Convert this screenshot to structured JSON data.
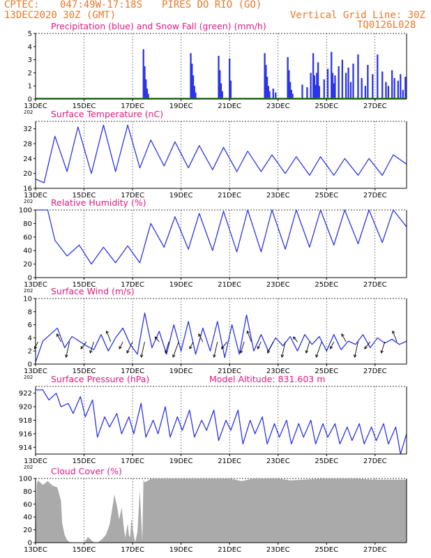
{
  "header": {
    "source": "CPTEC:",
    "coords": "047:49W-17:18S",
    "location": "PIRES DO RIO (GO)",
    "run": "13DEC2020 30Z (GMT)",
    "grid_note": "Vertical Grid Line: 30Z",
    "code": "TQ0126L028"
  },
  "colors": {
    "title": "#e0197d",
    "header": "#e8782a",
    "line": "#2b35e6",
    "snow": "#0a9a0a",
    "cloud": "#aaaaaa"
  },
  "x_axis": {
    "tick_labels": [
      "13DEC",
      "15DEC",
      "17DEC",
      "19DEC",
      "21DEC",
      "23DEC",
      "25DEC",
      "27DEC"
    ],
    "tick_days": [
      0,
      2,
      4,
      6,
      8,
      10,
      12,
      14
    ],
    "range_days": [
      0,
      15.3
    ],
    "year_fragment": "202"
  },
  "chart_data": [
    {
      "type": "bar",
      "title": "Precipitation (blue) and Snow Fall (green) (mm/h)",
      "ylim": [
        0,
        5
      ],
      "yticks": [
        "0",
        "1",
        "2",
        "3",
        "4",
        "5"
      ],
      "series": [
        {
          "name": "Precipitation",
          "x": [
            4.45,
            4.5,
            4.55,
            4.6,
            4.65,
            6.4,
            6.45,
            6.5,
            6.55,
            6.6,
            7.55,
            7.6,
            7.65,
            7.7,
            8.0,
            8.05,
            9.45,
            9.5,
            9.55,
            9.6,
            9.65,
            9.8,
            9.9,
            10.4,
            10.45,
            10.5,
            10.55,
            10.6,
            11.0,
            11.2,
            11.35,
            11.45,
            11.5,
            11.55,
            11.6,
            11.65,
            11.7,
            11.9,
            12.05,
            12.2,
            12.25,
            12.3,
            12.35,
            12.5,
            12.65,
            12.8,
            12.9,
            13.0,
            13.1,
            13.3,
            13.45,
            13.6,
            13.7,
            13.9,
            14.1,
            14.3,
            14.45,
            14.55,
            14.7,
            14.8,
            14.95,
            15.05,
            15.15,
            15.25
          ],
          "values": [
            3.8,
            2.5,
            1.5,
            0.8,
            0.4,
            3.5,
            2.7,
            1.8,
            1.0,
            0.5,
            3.3,
            2.2,
            1.2,
            0.6,
            3.1,
            1.4,
            3.5,
            2.6,
            1.7,
            1.0,
            0.6,
            0.8,
            0.5,
            3.2,
            2.2,
            1.3,
            0.7,
            0.4,
            1.1,
            0.9,
            2.0,
            3.5,
            1.8,
            1.1,
            2.0,
            2.8,
            1.0,
            1.5,
            2.3,
            3.6,
            2.0,
            1.2,
            1.8,
            2.5,
            3.0,
            2.0,
            2.4,
            1.3,
            2.7,
            3.4,
            1.6,
            1.0,
            2.6,
            1.9,
            3.4,
            2.1,
            1.3,
            1.0,
            2.2,
            1.6,
            1.4,
            1.9,
            0.7,
            1.7
          ]
        },
        {
          "name": "Snow Fall",
          "values": [
            0
          ]
        }
      ]
    },
    {
      "type": "line",
      "title": "Surface Temperature (nC)",
      "ylim": [
        16,
        34
      ],
      "yticks": [
        "16",
        "20",
        "24",
        "28",
        "32"
      ],
      "x": [
        0,
        0.35,
        0.8,
        1.3,
        1.75,
        2.3,
        2.8,
        3.3,
        3.8,
        4.3,
        4.75,
        5.3,
        5.75,
        6.3,
        6.75,
        7.3,
        7.75,
        8.3,
        8.75,
        9.3,
        9.75,
        10.3,
        10.75,
        11.3,
        11.75,
        12.3,
        12.75,
        13.3,
        13.75,
        14.3,
        14.75,
        15.3
      ],
      "values": [
        18.5,
        17.5,
        30,
        20.5,
        32.5,
        20,
        33,
        20.5,
        33,
        21.5,
        29,
        22,
        28.5,
        21.5,
        27.5,
        21,
        27,
        20.5,
        26,
        20.5,
        25,
        20,
        24.5,
        19.5,
        24.5,
        19.5,
        24,
        19.5,
        24,
        19.5,
        25,
        22.5
      ]
    },
    {
      "type": "line",
      "title": "Relative Humidity (%)",
      "ylim": [
        0,
        100
      ],
      "yticks": [
        "0",
        "20",
        "40",
        "60",
        "80",
        "100"
      ],
      "x": [
        0,
        0.5,
        0.8,
        1.3,
        1.8,
        2.3,
        2.8,
        3.3,
        3.8,
        4.3,
        4.75,
        5.3,
        5.75,
        6.3,
        6.75,
        7.3,
        7.75,
        8.3,
        8.75,
        9.3,
        9.75,
        10.3,
        10.75,
        11.3,
        11.75,
        12.3,
        12.75,
        13.3,
        13.75,
        14.3,
        14.75,
        15.3
      ],
      "values": [
        100,
        100,
        55,
        32,
        48,
        20,
        45,
        22,
        47,
        22,
        80,
        45,
        90,
        42,
        95,
        40,
        98,
        38,
        100,
        38,
        100,
        42,
        100,
        45,
        100,
        48,
        100,
        50,
        100,
        52,
        100,
        75
      ]
    },
    {
      "type": "line",
      "title": "Surface Wind (m/s)",
      "ylim": [
        0,
        10
      ],
      "yticks": [
        "0",
        "2",
        "4",
        "6",
        "8",
        "10"
      ],
      "x": [
        0,
        0.3,
        0.6,
        0.9,
        1.2,
        1.5,
        1.8,
        2.1,
        2.4,
        2.7,
        3.0,
        3.3,
        3.6,
        3.9,
        4.2,
        4.5,
        4.8,
        5.1,
        5.4,
        5.7,
        6.0,
        6.3,
        6.6,
        6.9,
        7.2,
        7.5,
        7.8,
        8.1,
        8.4,
        8.7,
        9.0,
        9.3,
        9.6,
        9.9,
        10.2,
        10.5,
        10.8,
        11.1,
        11.4,
        11.7,
        12.0,
        12.3,
        12.6,
        12.9,
        13.2,
        13.5,
        13.8,
        14.1,
        14.4,
        14.7,
        15.0,
        15.3
      ],
      "values": [
        0.3,
        3.5,
        4.5,
        5.5,
        2.5,
        4.2,
        3.5,
        2.8,
        2.2,
        4.5,
        2.0,
        4.0,
        5.5,
        3.0,
        1.5,
        7.8,
        2.5,
        5.0,
        1.5,
        6.0,
        2.0,
        6.5,
        1.5,
        5.5,
        2.0,
        6.5,
        1.0,
        6.0,
        1.5,
        7.5,
        2.0,
        4.5,
        2.0,
        4.0,
        2.8,
        4.2,
        2.0,
        4.5,
        3.0,
        4.2,
        2.0,
        4.5,
        2.2,
        3.5,
        3.0,
        4.5,
        2.5,
        4.0,
        3.2,
        3.8,
        3.0,
        3.5
      ]
    },
    {
      "type": "line",
      "title": "Surface Pressure (hPa)",
      "annotation": "Model Altitude: 831.603 m",
      "ylim": [
        913,
        923
      ],
      "yticks": [
        "914",
        "916",
        "918",
        "920",
        "922"
      ],
      "x": [
        0,
        0.3,
        0.55,
        0.85,
        1.05,
        1.35,
        1.55,
        1.85,
        2.05,
        2.35,
        2.55,
        2.85,
        3.05,
        3.35,
        3.55,
        3.85,
        4.05,
        4.35,
        4.55,
        4.85,
        5.05,
        5.35,
        5.55,
        5.85,
        6.05,
        6.35,
        6.55,
        6.85,
        7.05,
        7.35,
        7.55,
        7.85,
        8.05,
        8.35,
        8.55,
        8.85,
        9.05,
        9.35,
        9.55,
        9.85,
        10.05,
        10.35,
        10.55,
        10.85,
        11.05,
        11.35,
        11.55,
        11.85,
        12.05,
        12.35,
        12.55,
        12.85,
        13.05,
        13.35,
        13.55,
        13.85,
        14.05,
        14.35,
        14.55,
        14.85,
        15.05,
        15.3
      ],
      "values": [
        922.5,
        922.5,
        921,
        922,
        920,
        920.5,
        919,
        921.5,
        918.5,
        921,
        915.5,
        918.5,
        917,
        919,
        916,
        918.5,
        916,
        920.5,
        915.5,
        918,
        916,
        920,
        915.5,
        918.5,
        916.5,
        919.5,
        915.5,
        918,
        916.5,
        919.5,
        915,
        918,
        916.5,
        919.5,
        914.5,
        918,
        916,
        918.5,
        914.5,
        917.5,
        915.5,
        918,
        914.5,
        917.5,
        915.5,
        918,
        914.5,
        917.5,
        915.5,
        917.5,
        914.5,
        917,
        915,
        917.5,
        914.5,
        917,
        915,
        917.5,
        914.5,
        917,
        913,
        916
      ]
    },
    {
      "type": "area",
      "title": "Cloud Cover (%)",
      "ylim": [
        0,
        100
      ],
      "yticks": [
        "0",
        "20",
        "40",
        "60",
        "80",
        "100"
      ],
      "x": [
        0,
        0.05,
        0.1,
        0.3,
        0.5,
        0.7,
        0.9,
        1.05,
        1.1,
        1.2,
        1.3,
        1.4,
        1.6,
        1.8,
        2.0,
        2.1,
        2.15,
        2.25,
        2.35,
        2.45,
        2.55,
        2.7,
        2.9,
        3.05,
        3.15,
        3.25,
        3.35,
        3.45,
        3.55,
        3.65,
        3.7,
        3.8,
        3.85,
        3.9,
        3.95,
        4.0,
        4.1,
        4.2,
        4.3,
        4.4,
        4.45,
        4.5,
        4.6,
        4.8,
        5.0,
        5.5,
        6.0,
        6.5,
        7.0,
        7.5,
        8.0,
        8.5,
        9.0,
        9.5,
        10.0,
        10.5,
        11.0,
        12.0,
        13.0,
        14.0,
        15.0,
        15.3
      ],
      "values": [
        0,
        92,
        97,
        90,
        96,
        89,
        86,
        65,
        30,
        12,
        4,
        1,
        0,
        0,
        0,
        5,
        9,
        6,
        2,
        0,
        0,
        4,
        12,
        28,
        50,
        75,
        58,
        36,
        55,
        20,
        8,
        30,
        12,
        8,
        38,
        24,
        0,
        16,
        82,
        2,
        98,
        94,
        96,
        100,
        100,
        100,
        100,
        100,
        100,
        100,
        100,
        96,
        100,
        100,
        100,
        97,
        98,
        100,
        100,
        98,
        98,
        98
      ]
    }
  ]
}
